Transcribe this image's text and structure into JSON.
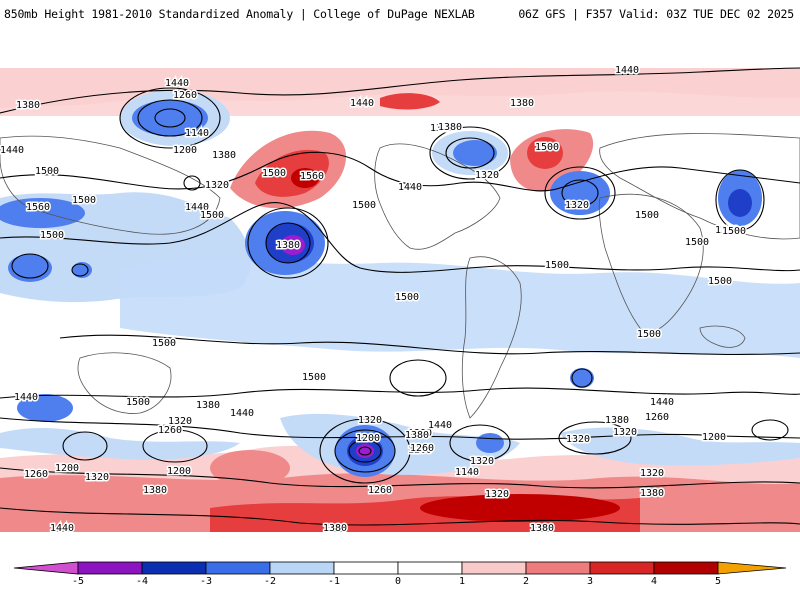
{
  "header": {
    "left_title": "850mb Height 1981-2010 Standardized Anomaly | College of DuPage NEXLAB",
    "right_title": "06Z GFS | F357 Valid: 03Z TUE DEC 02 2025"
  },
  "colors": {
    "neg5": "#e060e0",
    "neg4": "#9a1ecf",
    "neg3": "#1f3fc8",
    "neg2": "#4f7fef",
    "neg1": "#c4dbf8",
    "zero": "#ffffff",
    "pos1": "#fbd0d0",
    "pos2": "#f08a8a",
    "pos3": "#e63e3e",
    "pos4": "#c00000",
    "pos5": "#f4a300",
    "contour": "#000000",
    "land": "#555555"
  },
  "colorbar": {
    "ticks": [
      "-5",
      "-4",
      "-3",
      "-2",
      "-1",
      "0",
      "1",
      "2",
      "3",
      "4",
      "5"
    ],
    "segments": [
      {
        "name": "neg5",
        "color": "#d050d0"
      },
      {
        "name": "neg4",
        "color": "#8c14c0"
      },
      {
        "name": "neg3",
        "color": "#0a2fb0"
      },
      {
        "name": "neg2",
        "color": "#3a6ee8"
      },
      {
        "name": "neg1",
        "color": "#b9d6f6"
      },
      {
        "name": "zero_lo",
        "color": "#ffffff"
      },
      {
        "name": "zero_hi",
        "color": "#ffffff"
      },
      {
        "name": "pos1",
        "color": "#f9caca"
      },
      {
        "name": "pos2",
        "color": "#ee7c7c"
      },
      {
        "name": "pos3",
        "color": "#d82626"
      },
      {
        "name": "pos4",
        "color": "#b00000"
      },
      {
        "name": "pos5",
        "color": "#f2a100"
      }
    ]
  },
  "contour_labels": [
    {
      "text": "1440"
    },
    {
      "text": "1440"
    },
    {
      "text": "1380"
    },
    {
      "text": "1260"
    },
    {
      "text": "1140"
    },
    {
      "text": "1200"
    },
    {
      "text": "1380"
    },
    {
      "text": "1320"
    },
    {
      "text": "1500"
    },
    {
      "text": "1500"
    },
    {
      "text": "1560"
    },
    {
      "text": "1500"
    },
    {
      "text": "1440"
    },
    {
      "text": "1440"
    },
    {
      "text": "1500"
    },
    {
      "text": "1380"
    },
    {
      "text": "1320"
    },
    {
      "text": "1440"
    },
    {
      "text": "1560"
    },
    {
      "text": "1500"
    },
    {
      "text": "1320"
    },
    {
      "text": "1380"
    },
    {
      "text": "1440"
    },
    {
      "text": "1500"
    },
    {
      "text": "1500"
    },
    {
      "text": "1380"
    },
    {
      "text": "1320"
    },
    {
      "text": "1500"
    },
    {
      "text": "1500"
    },
    {
      "text": "1500"
    },
    {
      "text": "1500"
    },
    {
      "text": "1500"
    },
    {
      "text": "1500"
    },
    {
      "text": "1500"
    },
    {
      "text": "1500"
    },
    {
      "text": "1440"
    },
    {
      "text": "1500"
    },
    {
      "text": "1380"
    },
    {
      "text": "1440"
    },
    {
      "text": "1320"
    },
    {
      "text": "1260"
    },
    {
      "text": "1200"
    },
    {
      "text": "1320"
    },
    {
      "text": "1200"
    },
    {
      "text": "1380"
    },
    {
      "text": "1260"
    },
    {
      "text": "1140"
    },
    {
      "text": "1440"
    },
    {
      "text": "1380"
    },
    {
      "text": "1320"
    },
    {
      "text": "1200"
    },
    {
      "text": "1260"
    },
    {
      "text": "1380"
    },
    {
      "text": "1320"
    },
    {
      "text": "1260"
    },
    {
      "text": "1320"
    },
    {
      "text": "1380"
    },
    {
      "text": "1320"
    },
    {
      "text": "1260"
    },
    {
      "text": "1200"
    },
    {
      "text": "1380"
    },
    {
      "text": "1440"
    },
    {
      "text": "1440"
    },
    {
      "text": "1380"
    },
    {
      "text": "1320"
    },
    {
      "text": "1380"
    },
    {
      "text": "1260"
    },
    {
      "text": "1320"
    },
    {
      "text": "1500"
    },
    {
      "text": "1500"
    }
  ]
}
